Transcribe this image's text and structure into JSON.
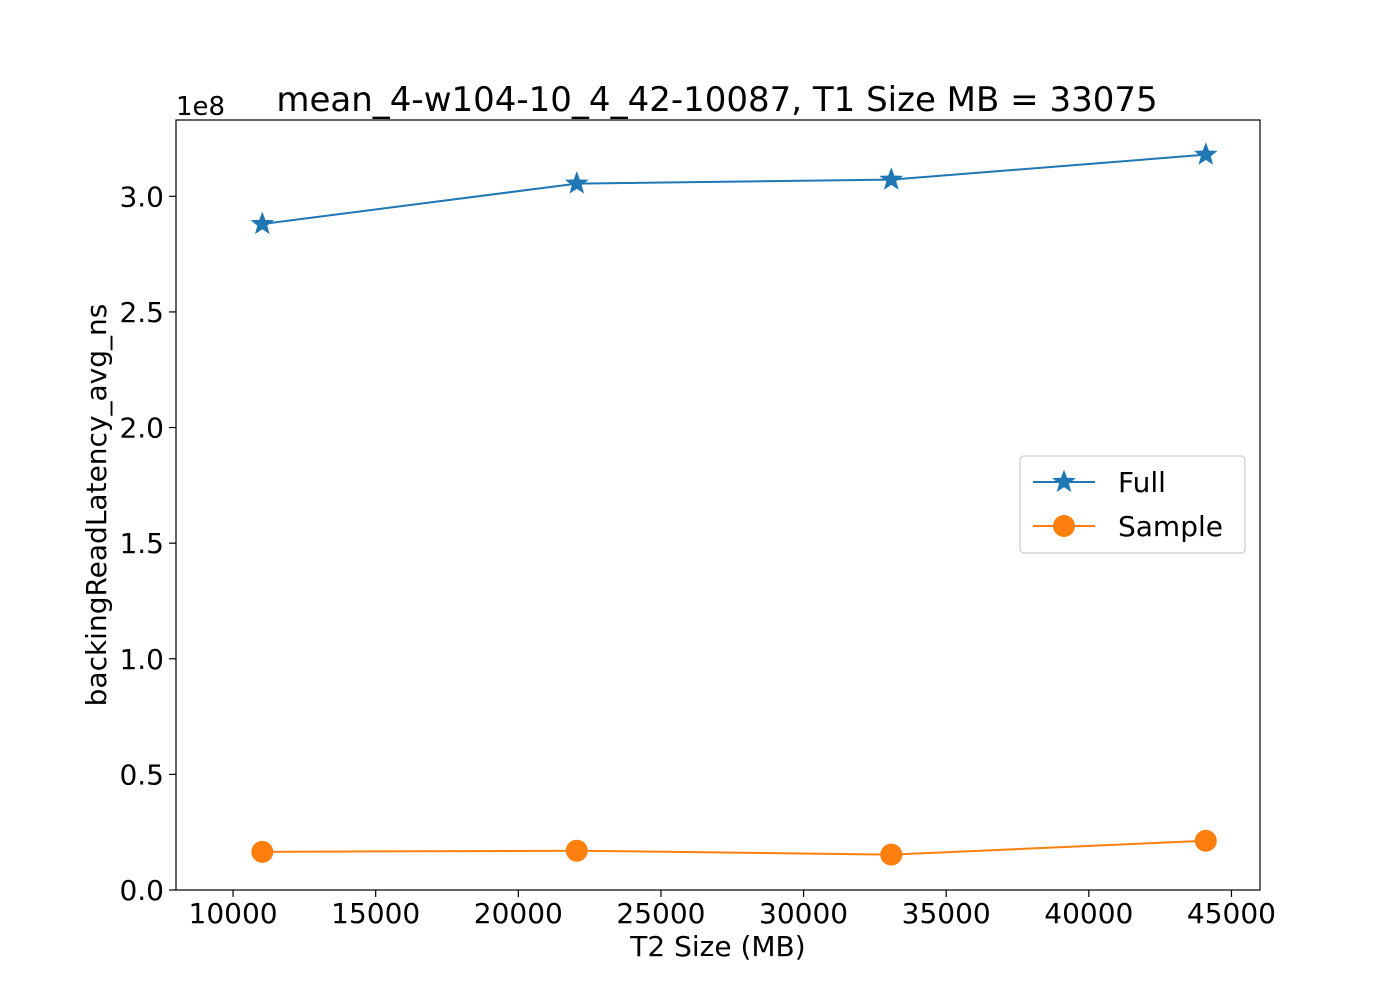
{
  "chart_data": {
    "type": "line",
    "title": "mean_4-w104-10_4_42-10087, T1 Size MB = 33075",
    "xlabel": "T2 Size (MB)",
    "ylabel": "backingReadLatency_avg_ns",
    "y_offset_label": "1e8",
    "y_scale_exponent": 8,
    "xlim": [
      8000,
      46000
    ],
    "ylim": [
      0,
      3.33
    ],
    "x_ticks": [
      10000,
      15000,
      20000,
      25000,
      30000,
      35000,
      40000,
      45000
    ],
    "x_tick_labels": [
      "10000",
      "15000",
      "20000",
      "25000",
      "30000",
      "35000",
      "40000",
      "45000"
    ],
    "y_ticks": [
      0,
      0.5,
      1.0,
      1.5,
      2.0,
      2.5,
      3.0
    ],
    "y_tick_labels": [
      "0.0",
      "0.5",
      "1.0",
      "1.5",
      "2.0",
      "2.5",
      "3.0"
    ],
    "x": [
      11025,
      22050,
      33075,
      44100
    ],
    "series": [
      {
        "name": "Full",
        "values": [
          2.88,
          3.055,
          3.072,
          3.18
        ],
        "color": "#1f77b4",
        "marker": "star"
      },
      {
        "name": "Sample",
        "values": [
          0.165,
          0.17,
          0.153,
          0.213
        ],
        "color": "#ff7f0e",
        "marker": "circle"
      }
    ],
    "legend_position": "center-right",
    "grid": false
  }
}
